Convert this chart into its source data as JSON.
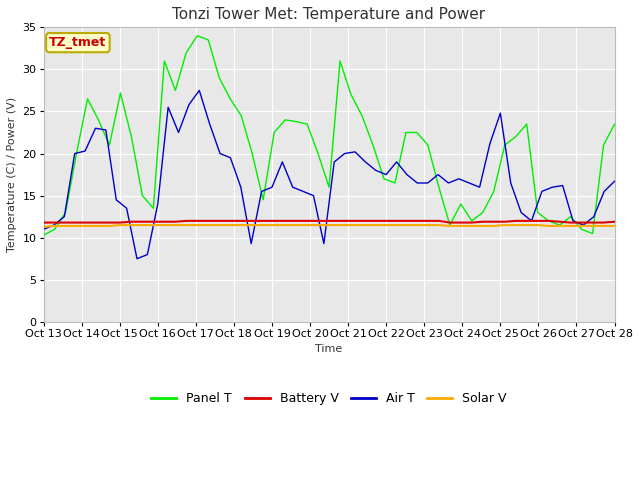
{
  "title": "Tonzi Tower Met: Temperature and Power",
  "xlabel": "Time",
  "ylabel": "Temperature (C) / Power (V)",
  "annotation": "TZ_tmet",
  "ylim": [
    0,
    35
  ],
  "yticks": [
    0,
    5,
    10,
    15,
    20,
    25,
    30,
    35
  ],
  "x_labels": [
    "Oct 13",
    "Oct 14",
    "Oct 15",
    "Oct 16",
    "Oct 17",
    "Oct 18",
    "Oct 19",
    "Oct 20",
    "Oct 21",
    "Oct 22",
    "Oct 23",
    "Oct 24",
    "Oct 25",
    "Oct 26",
    "Oct 27",
    "Oct 28"
  ],
  "legend_labels": [
    "Panel T",
    "Battery V",
    "Air T",
    "Solar V"
  ],
  "legend_colors": [
    "#00ee00",
    "#dd0000",
    "#0000cc",
    "#ffaa00"
  ],
  "panel_t": [
    10.3,
    11.0,
    13.0,
    20.0,
    26.5,
    24.0,
    21.0,
    27.2,
    22.0,
    15.0,
    13.5,
    31.0,
    27.5,
    32.0,
    34.0,
    33.5,
    29.0,
    26.5,
    24.5,
    20.0,
    14.5,
    22.5,
    24.0,
    23.8,
    23.5,
    20.0,
    16.0,
    31.0,
    27.0,
    24.5,
    21.0,
    17.0,
    16.5,
    22.5,
    22.5,
    21.0,
    16.0,
    11.5,
    14.0,
    12.0,
    13.0,
    15.5,
    21.0,
    22.0,
    23.5,
    13.0,
    12.0,
    11.5,
    12.5,
    11.0,
    10.5,
    21.0,
    23.5
  ],
  "battery_v": [
    11.8,
    11.8,
    11.8,
    11.8,
    11.8,
    11.8,
    11.8,
    11.8,
    11.9,
    11.9,
    11.9,
    11.9,
    11.9,
    12.0,
    12.0,
    12.0,
    12.0,
    12.0,
    12.0,
    12.0,
    12.0,
    12.0,
    12.0,
    12.0,
    12.0,
    12.0,
    12.0,
    12.0,
    12.0,
    12.0,
    12.0,
    12.0,
    12.0,
    12.0,
    12.0,
    12.0,
    12.0,
    11.8,
    11.8,
    11.8,
    11.9,
    11.9,
    11.9,
    12.0,
    12.0,
    12.0,
    12.0,
    11.9,
    11.8,
    11.8,
    11.8,
    11.8,
    11.9
  ],
  "air_t": [
    11.0,
    11.5,
    12.5,
    20.0,
    20.3,
    23.0,
    22.8,
    14.5,
    13.5,
    7.5,
    8.0,
    14.0,
    25.5,
    22.5,
    25.8,
    27.5,
    23.5,
    20.0,
    19.5,
    16.0,
    9.3,
    15.5,
    16.0,
    19.0,
    16.0,
    15.5,
    15.0,
    9.3,
    19.0,
    20.0,
    20.2,
    19.0,
    18.0,
    17.5,
    19.0,
    17.5,
    16.5,
    16.5,
    17.5,
    16.5,
    17.0,
    16.5,
    16.0,
    21.2,
    24.8,
    16.5,
    13.0,
    12.0,
    15.5,
    16.0,
    16.2,
    12.0,
    11.5,
    12.5,
    15.5,
    16.7
  ],
  "solar_v": [
    11.3,
    11.4,
    11.4,
    11.4,
    11.4,
    11.4,
    11.4,
    11.5,
    11.5,
    11.5,
    11.5,
    11.5,
    11.5,
    11.5,
    11.5,
    11.5,
    11.5,
    11.5,
    11.5,
    11.5,
    11.5,
    11.5,
    11.5,
    11.5,
    11.5,
    11.5,
    11.5,
    11.5,
    11.5,
    11.5,
    11.5,
    11.5,
    11.5,
    11.5,
    11.5,
    11.5,
    11.5,
    11.4,
    11.4,
    11.4,
    11.4,
    11.4,
    11.5,
    11.5,
    11.5,
    11.5,
    11.4,
    11.4,
    11.4,
    11.4,
    11.4,
    11.4,
    11.4
  ],
  "plot_bg_color": "#e8e8e8",
  "fig_bg_color": "#ffffff",
  "grid_color": "#ffffff",
  "title_fontsize": 11,
  "axis_label_fontsize": 8,
  "tick_fontsize": 8,
  "legend_fontsize": 9
}
